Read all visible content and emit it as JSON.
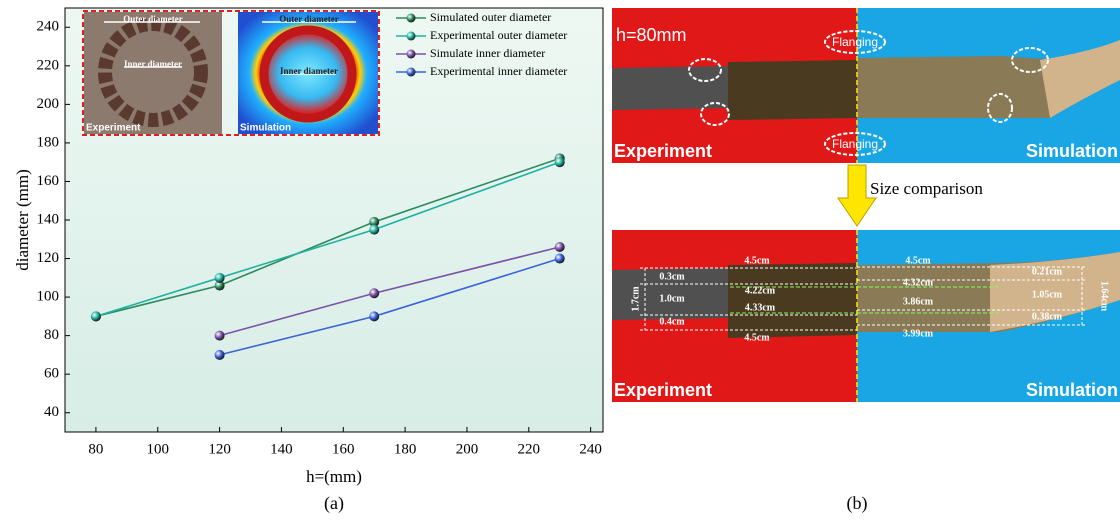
{
  "chart_data": {
    "type": "line",
    "xlabel": "h=(mm)",
    "ylabel": "diameter (mm)",
    "xlim": [
      70,
      244
    ],
    "xticks": [
      80,
      100,
      120,
      140,
      160,
      180,
      200,
      220,
      240
    ],
    "ylim": [
      30,
      250
    ],
    "yticks": [
      40,
      60,
      80,
      100,
      120,
      140,
      160,
      180,
      200,
      220,
      240
    ],
    "series": [
      {
        "name": "Simulated outer diameter",
        "color": "#2e8b5f",
        "x": [
          80,
          120,
          170,
          230
        ],
        "values": [
          90,
          106,
          139,
          172
        ]
      },
      {
        "name": "Experimental outer diameter",
        "color": "#20b2a0",
        "x": [
          80,
          120,
          170,
          230
        ],
        "values": [
          90,
          110,
          135,
          170
        ]
      },
      {
        "name": "Simulate inner diameter",
        "color": "#7b52a8",
        "x": [
          120,
          170,
          230
        ],
        "values": [
          80,
          102,
          126
        ]
      },
      {
        "name": "Experimental inner diameter",
        "color": "#3b63dc",
        "x": [
          120,
          170,
          230
        ],
        "values": [
          70,
          90,
          120
        ]
      }
    ],
    "legend": "upper right"
  },
  "inset": {
    "outer": [
      "Outer diameter",
      "Outer diameter"
    ],
    "inner": [
      "Inner diameter",
      "Inner diameter"
    ],
    "experiment": "Experiment",
    "simulation": "Simulation"
  },
  "panel_a": {
    "label": "(a)"
  },
  "panel_b": {
    "label": "(b)",
    "h_label": "h=80mm",
    "flanging": [
      "Flanging",
      "Flanging"
    ],
    "experiment": [
      "Experiment",
      "Experiment"
    ],
    "simulation": [
      "Simulation",
      "Simulation"
    ],
    "arrow_label": "Size comparison",
    "dimensions": [
      "4.5cm",
      "0.3cm",
      "4.22cm",
      "1.0cm",
      "4.33cm",
      "0.4cm",
      "4.5cm",
      "1.7cm",
      "4.5cm",
      "4.32cm",
      "3.86cm",
      "3.99cm",
      "0.21cm",
      "1.05cm",
      "0.38cm",
      "1.64cm"
    ]
  }
}
